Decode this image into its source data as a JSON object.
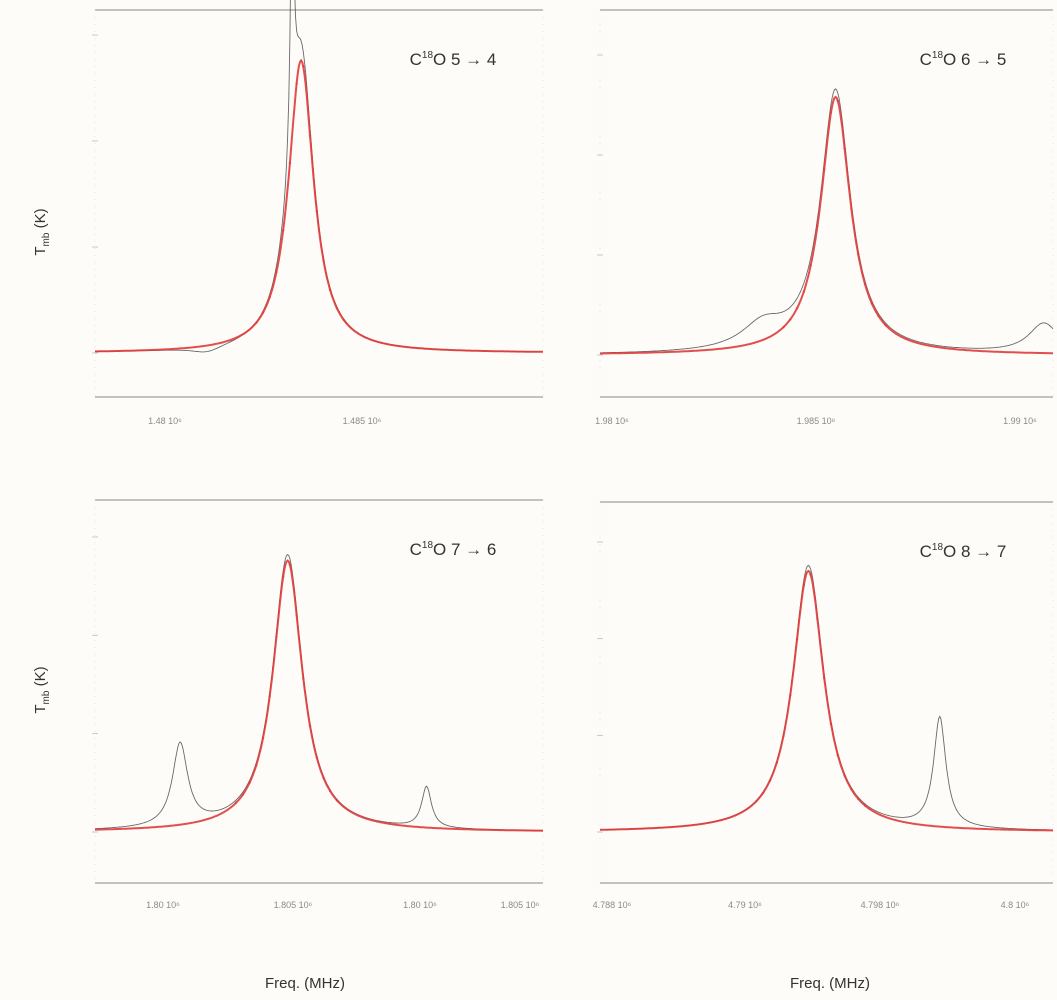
{
  "figure": {
    "ylabel": "T_mb (K)",
    "xlabel": "Freq. (MHz)"
  },
  "chart_data": [
    {
      "type": "line",
      "panel_label": {
        "molecule": "C",
        "isotope": "18",
        "rest": "O 5 → 4"
      },
      "x_tick_labels": [
        "1.48 10⁶",
        "1.485 10⁶"
      ],
      "line_center": 0.46,
      "line_width": 0.034,
      "fit_peak": 0.92,
      "series": [
        {
          "name": "",
          "color": "#e03a3a",
          "kind": "fit"
        },
        {
          "name": "",
          "color": "#444444",
          "kind": "data",
          "features": [
            {
              "x": 0.44,
              "height": 0.78,
              "width": 0.006
            },
            {
              "x": 0.25,
              "height": -0.02,
              "width": 0.05
            }
          ]
        }
      ]
    },
    {
      "type": "line",
      "panel_label": {
        "molecule": "C",
        "isotope": "18",
        "rest": "O 6 → 5"
      },
      "x_tick_labels": [
        "1.98 10⁶",
        "1.985 10⁶",
        "1.99 10⁶"
      ],
      "line_center": 0.52,
      "line_width": 0.04,
      "fit_peak": 0.86,
      "series": [
        {
          "name": "",
          "color": "#e03a3a",
          "kind": "fit"
        },
        {
          "name": "",
          "color": "#444444",
          "kind": "data",
          "features": [
            {
              "x": 0.36,
              "height": 0.08,
              "width": 0.07
            },
            {
              "x": 0.98,
              "height": 0.1,
              "width": 0.05
            }
          ]
        }
      ]
    },
    {
      "type": "line",
      "panel_label": {
        "molecule": "C",
        "isotope": "18",
        "rest": "O 7 → 6"
      },
      "x_tick_labels": [
        "1.80 10⁶",
        "1.805 10⁶",
        "1.80 10⁶",
        "1.805 10⁶"
      ],
      "line_center": 0.43,
      "line_width": 0.04,
      "fit_peak": 0.92,
      "series": [
        {
          "name": "",
          "color": "#e03a3a",
          "kind": "fit"
        },
        {
          "name": "",
          "color": "#444444",
          "kind": "data",
          "features": [
            {
              "x": 0.19,
              "height": 0.28,
              "width": 0.025
            },
            {
              "x": 0.74,
              "height": 0.14,
              "width": 0.016
            }
          ]
        }
      ]
    },
    {
      "type": "line",
      "panel_label": {
        "molecule": "C",
        "isotope": "18",
        "rest": "O 8 → 7"
      },
      "x_tick_labels": [
        "4.788 10⁶",
        "4.79 10⁶",
        "4.798 10⁶",
        "4.8 10⁶"
      ],
      "line_center": 0.46,
      "line_width": 0.042,
      "fit_peak": 0.9,
      "series": [
        {
          "name": "",
          "color": "#e03a3a",
          "kind": "fit"
        },
        {
          "name": "",
          "color": "#444444",
          "kind": "data",
          "features": [
            {
              "x": 0.75,
              "height": 0.38,
              "width": 0.02
            }
          ]
        }
      ]
    }
  ]
}
